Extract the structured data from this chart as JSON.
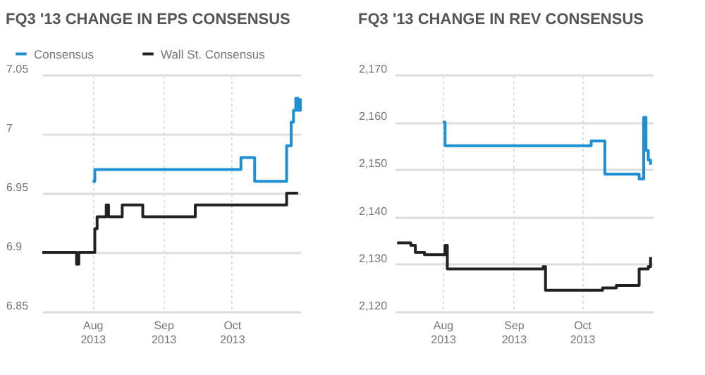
{
  "chart_data": [
    {
      "type": "step",
      "title": "FQ3 '13 CHANGE IN EPS CONSENSUS",
      "legend": "top",
      "grid": true,
      "line_style": "solid",
      "marker": "none",
      "xlim": [
        "2013-07-10",
        "2013-10-31"
      ],
      "xticks": [
        {
          "value": "2013-08-01",
          "label": "Aug 2013"
        },
        {
          "value": "2013-09-01",
          "label": "Sep 2013"
        },
        {
          "value": "2013-10-01",
          "label": "Oct 2013"
        }
      ],
      "ylim": [
        6.85,
        7.05
      ],
      "yticks": [
        6.85,
        6.9,
        6.95,
        7,
        7.05
      ],
      "series": [
        {
          "name": "Consensus",
          "color": "#1f8fd3",
          "x": [
            "2013-08-01",
            "2013-08-02",
            "2013-10-05",
            "2013-10-11",
            "2013-10-25",
            "2013-10-27",
            "2013-10-28",
            "2013-10-29",
            "2013-10-30",
            "2013-10-31"
          ],
          "values": [
            6.96,
            6.97,
            6.98,
            6.96,
            6.99,
            7.01,
            7.02,
            7.03,
            7.02,
            7.03
          ]
        },
        {
          "name": "Wall St. Consensus",
          "color": "#222222",
          "x": [
            "2013-07-10",
            "2013-07-25",
            "2013-07-26",
            "2013-08-02",
            "2013-08-03",
            "2013-08-07",
            "2013-08-08",
            "2013-08-14",
            "2013-08-23",
            "2013-09-15",
            "2013-10-25",
            "2013-10-30"
          ],
          "values": [
            6.9,
            6.89,
            6.9,
            6.92,
            6.93,
            6.94,
            6.93,
            6.94,
            6.93,
            6.94,
            6.95,
            6.95
          ]
        }
      ]
    },
    {
      "type": "step",
      "title": "FQ3 '13 CHANGE IN REV CONSENSUS",
      "legend": "top",
      "grid": true,
      "line_style": "solid",
      "marker": "none",
      "xlim": [
        "2013-07-11",
        "2013-11-01"
      ],
      "xticks": [
        {
          "value": "2013-08-01",
          "label": "Aug 2013"
        },
        {
          "value": "2013-09-01",
          "label": "Sep 2013"
        },
        {
          "value": "2013-10-01",
          "label": "Oct 2013"
        }
      ],
      "ylim": [
        2120,
        2170
      ],
      "yticks": [
        {
          "value": 2120,
          "label": "2,120"
        },
        {
          "value": 2130,
          "label": "2,130"
        },
        {
          "value": 2140,
          "label": "2,140"
        },
        {
          "value": 2150,
          "label": "2,150"
        },
        {
          "value": 2160,
          "label": "2,160"
        },
        {
          "value": 2170,
          "label": "2,170"
        }
      ],
      "series": [
        {
          "name": "Consensus",
          "color": "#1f8fd3",
          "x": [
            "2013-08-01",
            "2013-08-02",
            "2013-10-05",
            "2013-10-11",
            "2013-10-26",
            "2013-10-28",
            "2013-10-29",
            "2013-10-30",
            "2013-10-31"
          ],
          "values": [
            2160,
            2155,
            2156,
            2149,
            2148,
            2161,
            2154,
            2152,
            2151
          ]
        },
        {
          "name": "Wall St. Consensus",
          "color": "#222222",
          "x": [
            "2013-07-12",
            "2013-07-18",
            "2013-07-20",
            "2013-07-24",
            "2013-08-02",
            "2013-08-03",
            "2013-09-14",
            "2013-09-15",
            "2013-10-10",
            "2013-10-16",
            "2013-10-26",
            "2013-10-30",
            "2013-10-31"
          ],
          "values": [
            2134.5,
            2134,
            2132.5,
            2132,
            2134,
            2129,
            2129.5,
            2124.5,
            2125,
            2125.5,
            2129,
            2129.5,
            2131.5
          ]
        }
      ]
    }
  ]
}
